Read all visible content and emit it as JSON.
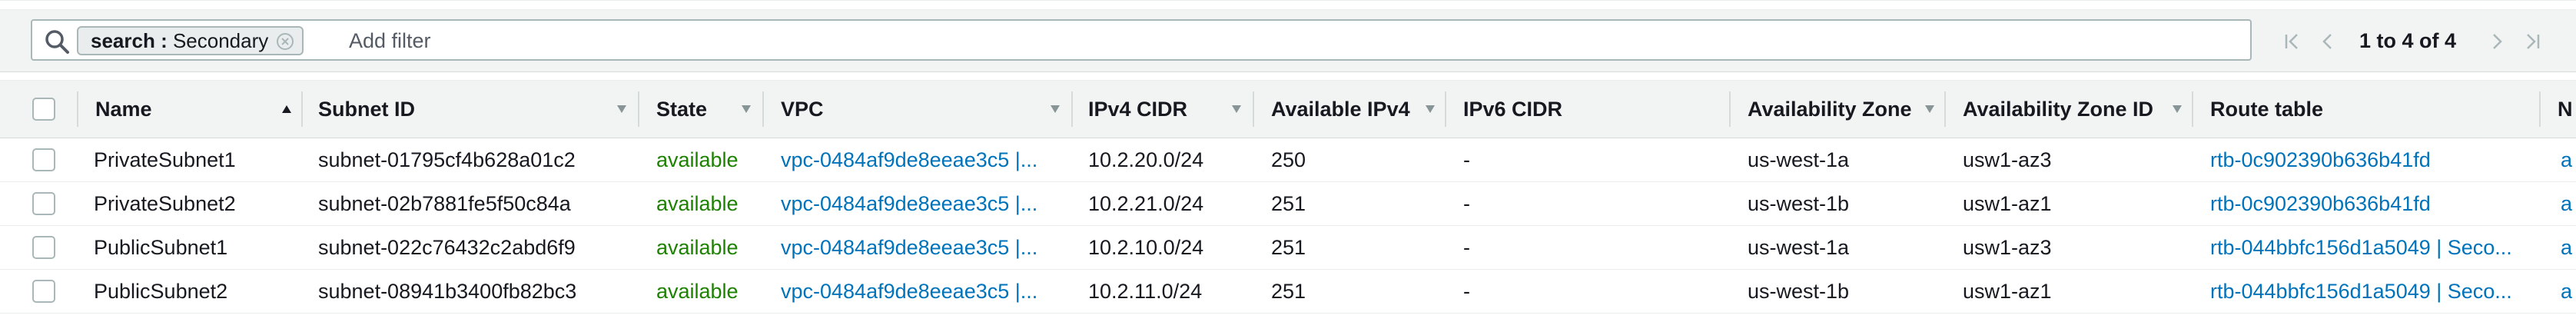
{
  "filter": {
    "token_key": "search",
    "token_sep": " : ",
    "token_value": "Secondary",
    "placeholder": "Add filter"
  },
  "pagination": {
    "label": "1 to 4 of 4"
  },
  "columns": {
    "name": "Name",
    "subnet_id": "Subnet ID",
    "state": "State",
    "vpc": "VPC",
    "ipv4_cidr": "IPv4 CIDR",
    "available_ipv4": "Available IPv4",
    "ipv6_cidr": "IPv6 CIDR",
    "availability_zone": "Availability Zone",
    "availability_zone_id": "Availability Zone ID",
    "route_table": "Route table",
    "network_acl": "N"
  },
  "rows": [
    {
      "name": "PrivateSubnet1",
      "subnet_id": "subnet-01795cf4b628a01c2",
      "state": "available",
      "vpc": "vpc-0484af9de8eeae3c5 |...",
      "ipv4_cidr": "10.2.20.0/24",
      "available_ipv4": "250",
      "ipv6_cidr": "-",
      "az": "us-west-1a",
      "az_id": "usw1-az3",
      "route_table": "rtb-0c902390b636b41fd",
      "network_acl": "a"
    },
    {
      "name": "PrivateSubnet2",
      "subnet_id": "subnet-02b7881fe5f50c84a",
      "state": "available",
      "vpc": "vpc-0484af9de8eeae3c5 |...",
      "ipv4_cidr": "10.2.21.0/24",
      "available_ipv4": "251",
      "ipv6_cidr": "-",
      "az": "us-west-1b",
      "az_id": "usw1-az1",
      "route_table": "rtb-0c902390b636b41fd",
      "network_acl": "a"
    },
    {
      "name": "PublicSubnet1",
      "subnet_id": "subnet-022c76432c2abd6f9",
      "state": "available",
      "vpc": "vpc-0484af9de8eeae3c5 |...",
      "ipv4_cidr": "10.2.10.0/24",
      "available_ipv4": "251",
      "ipv6_cidr": "-",
      "az": "us-west-1a",
      "az_id": "usw1-az3",
      "route_table": "rtb-044bbfc156d1a5049 | Seco...",
      "network_acl": "a"
    },
    {
      "name": "PublicSubnet2",
      "subnet_id": "subnet-08941b3400fb82bc3",
      "state": "available",
      "vpc": "vpc-0484af9de8eeae3c5 |...",
      "ipv4_cidr": "10.2.11.0/24",
      "available_ipv4": "251",
      "ipv6_cidr": "-",
      "az": "us-west-1b",
      "az_id": "usw1-az1",
      "route_table": "rtb-044bbfc156d1a5049 | Seco...",
      "network_acl": "a"
    }
  ],
  "colors": {
    "link": "#0073bb",
    "available": "#1d8102",
    "header_bg": "#f2f3f3"
  }
}
